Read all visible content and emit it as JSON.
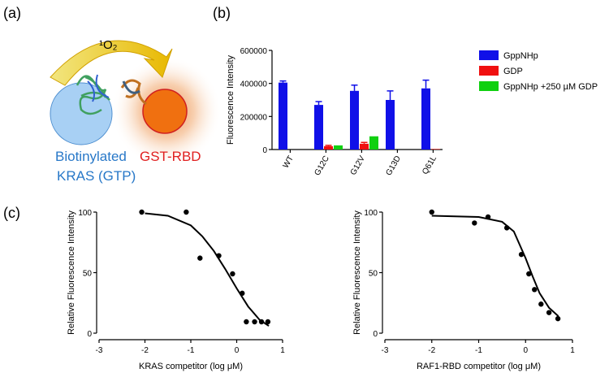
{
  "panels": [
    "(a)",
    "(b)",
    "(c)"
  ],
  "diagram": {
    "singlet_oxygen": "¹O₂",
    "left_label": [
      "Biotinylated",
      "KRAS (GTP)"
    ],
    "right_label": "GST-RBD"
  },
  "chart_data": [
    {
      "type": "bar",
      "categories": [
        "WT",
        "G12C",
        "G12V",
        "G13D",
        "Q61L"
      ],
      "y_label": "Fluorescence Intensity",
      "ylim": [
        0,
        600000
      ],
      "yticks": [
        0,
        200000,
        400000,
        600000
      ],
      "series": [
        {
          "name": "GppNHp",
          "color": "#1010e8",
          "values": [
            405000,
            270000,
            355000,
            300000,
            370000
          ],
          "errors": [
            10000,
            20000,
            35000,
            55000,
            50000
          ]
        },
        {
          "name": "GDP",
          "color": "#f01010",
          "values": [
            null,
            20000,
            35000,
            null,
            3000
          ],
          "errors": [
            null,
            5000,
            8000,
            null,
            null
          ]
        },
        {
          "name": "GppNHp +250 µM GDP",
          "color": "#10d010",
          "values": [
            null,
            25000,
            80000,
            null,
            null
          ],
          "errors": [
            null,
            null,
            null,
            null,
            null
          ]
        }
      ],
      "legend": "right"
    },
    {
      "type": "scatter",
      "x_label": "KRAS competitor (log μM)",
      "y_label": "Relative Fluorescence Intensity",
      "xlim": [
        -3,
        1
      ],
      "ylim": [
        0,
        100
      ],
      "xticks": [
        -3,
        -2,
        -1,
        0,
        1
      ],
      "yticks": [
        0,
        50,
        100
      ],
      "points": {
        "x": [
          -2.07,
          -1.1,
          -0.8,
          -0.39,
          -0.09,
          0.12,
          0.21,
          0.39,
          0.54,
          0.68
        ],
        "y": [
          100,
          100,
          62,
          64,
          49,
          33,
          9.4,
          9.4,
          9.4,
          9.4
        ]
      },
      "fit": {
        "x": [
          -2,
          -1.5,
          -1,
          -0.75,
          -0.5,
          -0.25,
          0,
          0.25,
          0.5,
          0.7
        ],
        "y": [
          99,
          97,
          89,
          80,
          68,
          53,
          37,
          22,
          11,
          6
        ]
      },
      "color": "#000000"
    },
    {
      "type": "scatter",
      "x_label": "RAF1-RBD competitor (log μM)",
      "y_label": "Relative Fluorescence Intensity",
      "xlim": [
        -3,
        1
      ],
      "ylim": [
        0,
        100
      ],
      "xticks": [
        -3,
        -2,
        -1,
        0,
        1
      ],
      "yticks": [
        0,
        50,
        100
      ],
      "points": {
        "x": [
          -2,
          -1.09,
          -0.8,
          -0.4,
          -0.09,
          0.07,
          0.19,
          0.33,
          0.5,
          0.69
        ],
        "y": [
          100,
          91,
          96,
          87,
          65,
          49,
          36,
          24,
          17,
          12
        ]
      },
      "fit": {
        "x": [
          -2,
          -1,
          -0.5,
          -0.25,
          0,
          0.15,
          0.3,
          0.5,
          0.7
        ],
        "y": [
          97,
          96,
          92,
          84,
          62,
          47,
          33,
          21,
          14
        ]
      },
      "color": "#000000"
    }
  ]
}
